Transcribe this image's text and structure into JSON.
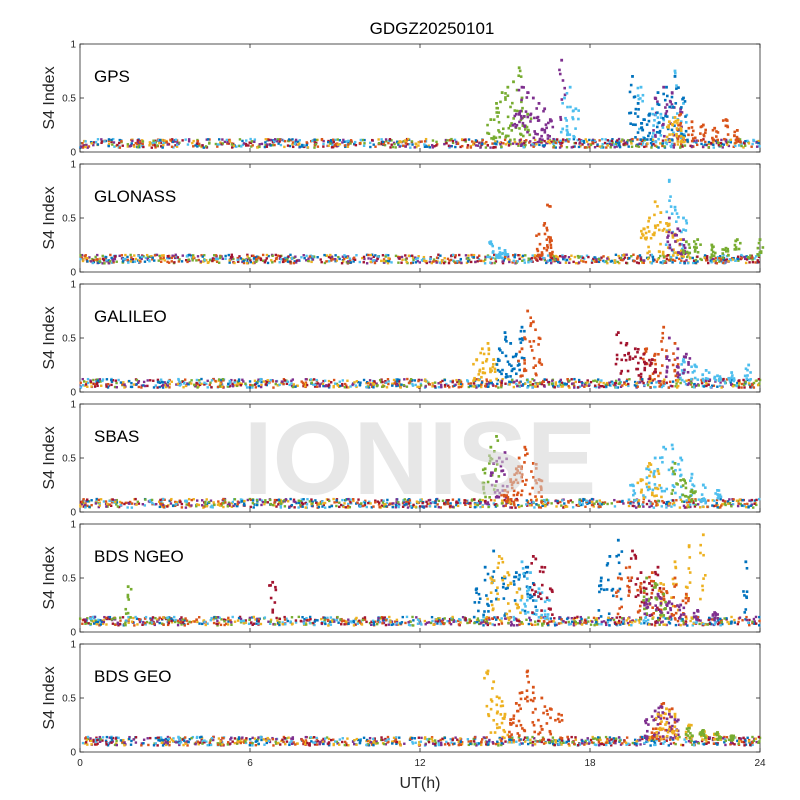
{
  "chart_data": {
    "type": "scatter",
    "title": "GDGZ20250101",
    "xlabel": "UT(h)",
    "ylabel": "S4 Index",
    "xlim": [
      0,
      24
    ],
    "ylim": [
      0,
      1
    ],
    "xticks": [
      "0",
      "6",
      "12",
      "18",
      "24"
    ],
    "yticks": [
      "0",
      "0.5",
      "1"
    ],
    "watermark": "IONISE",
    "colors": [
      "#0072BD",
      "#D95319",
      "#EDB120",
      "#7E2F8E",
      "#77AC30",
      "#4DBEEE",
      "#A2142F"
    ],
    "panels": [
      {
        "name": "GPS",
        "baseline": 0.08,
        "series": [
          {
            "color": "#77AC30",
            "x": [
              14.5,
              14.7,
              14.9,
              15.1,
              15.3,
              15.5,
              15.6,
              15.8
            ],
            "y": [
              0.3,
              0.45,
              0.55,
              0.6,
              0.65,
              0.78,
              0.5,
              0.35
            ]
          },
          {
            "color": "#7E2F8E",
            "x": [
              15.4,
              15.6,
              15.8,
              16.0,
              16.2,
              16.4,
              16.6,
              17.0,
              20.3,
              20.6,
              20.9,
              21.2
            ],
            "y": [
              0.35,
              0.6,
              0.55,
              0.5,
              0.45,
              0.4,
              0.3,
              0.85,
              0.5,
              0.6,
              0.55,
              0.4
            ]
          },
          {
            "color": "#4DBEEE",
            "x": [
              17.1,
              17.3,
              17.5,
              19.8,
              20.2,
              20.5,
              21.0,
              21.3
            ],
            "y": [
              0.5,
              0.6,
              0.4,
              0.6,
              0.4,
              0.35,
              0.75,
              0.45
            ]
          },
          {
            "color": "#0072BD",
            "x": [
              19.5,
              19.7,
              19.9,
              20.1,
              20.4,
              20.7,
              21.0,
              21.3
            ],
            "y": [
              0.7,
              0.45,
              0.3,
              0.35,
              0.55,
              0.6,
              0.7,
              0.5
            ]
          },
          {
            "color": "#D95319",
            "x": [
              21.2,
              21.6,
              22.0,
              22.4,
              22.8,
              23.2
            ],
            "y": [
              0.35,
              0.28,
              0.25,
              0.22,
              0.3,
              0.2
            ]
          },
          {
            "color": "#EDB120",
            "x": [
              20.8,
              21.0,
              21.2
            ],
            "y": [
              0.28,
              0.32,
              0.22
            ]
          }
        ]
      },
      {
        "name": "GLONASS",
        "baseline": 0.12,
        "series": [
          {
            "color": "#D95319",
            "x": [
              16.2,
              16.4,
              16.5,
              16.6
            ],
            "y": [
              0.35,
              0.45,
              0.62,
              0.3
            ]
          },
          {
            "color": "#4DBEEE",
            "x": [
              14.5,
              14.8,
              15.0,
              20.8,
              21.0,
              21.3
            ],
            "y": [
              0.28,
              0.22,
              0.2,
              0.85,
              0.6,
              0.5
            ]
          },
          {
            "color": "#EDB120",
            "x": [
              19.9,
              20.1,
              20.3,
              20.5,
              20.7,
              21.0,
              21.2
            ],
            "y": [
              0.4,
              0.5,
              0.65,
              0.55,
              0.45,
              0.35,
              0.3
            ]
          },
          {
            "color": "#7E2F8E",
            "x": [
              20.8,
              21.1,
              21.3
            ],
            "y": [
              0.5,
              0.4,
              0.3
            ]
          },
          {
            "color": "#77AC30",
            "x": [
              21.4,
              21.8,
              22.3,
              22.8,
              23.2,
              24.0
            ],
            "y": [
              0.28,
              0.3,
              0.25,
              0.22,
              0.3,
              0.3
            ]
          }
        ]
      },
      {
        "name": "GALILEO",
        "baseline": 0.08,
        "series": [
          {
            "color": "#EDB120",
            "x": [
              14.0,
              14.2,
              14.4,
              14.6
            ],
            "y": [
              0.3,
              0.4,
              0.45,
              0.3
            ]
          },
          {
            "color": "#0072BD",
            "x": [
              14.8,
              15.0,
              15.2,
              15.4,
              15.6
            ],
            "y": [
              0.4,
              0.55,
              0.45,
              0.35,
              0.6
            ]
          },
          {
            "color": "#D95319",
            "x": [
              15.6,
              15.8,
              16.0,
              16.2,
              20.0,
              20.3,
              20.6,
              21.0
            ],
            "y": [
              0.4,
              0.75,
              0.65,
              0.5,
              0.4,
              0.35,
              0.6,
              0.45
            ]
          },
          {
            "color": "#A2142F",
            "x": [
              19.0,
              19.3,
              19.6,
              19.9,
              20.2
            ],
            "y": [
              0.55,
              0.45,
              0.4,
              0.35,
              0.3
            ]
          },
          {
            "color": "#4DBEEE",
            "x": [
              21.3,
              21.7,
              22.1,
              22.5,
              23.0,
              23.6
            ],
            "y": [
              0.3,
              0.25,
              0.2,
              0.15,
              0.18,
              0.25
            ]
          },
          {
            "color": "#7E2F8E",
            "x": [
              20.8,
              21.1,
              21.4
            ],
            "y": [
              0.5,
              0.4,
              0.35
            ]
          }
        ]
      },
      {
        "name": "SBAS",
        "baseline": 0.08,
        "series": [
          {
            "color": "#77AC30",
            "x": [
              14.3,
              14.5,
              14.7
            ],
            "y": [
              0.4,
              0.6,
              0.7
            ]
          },
          {
            "color": "#7E2F8E",
            "x": [
              14.6,
              14.8,
              15.0
            ],
            "y": [
              0.45,
              0.5,
              0.55
            ]
          },
          {
            "color": "#D95319",
            "x": [
              15.0,
              15.2,
              15.4,
              15.5,
              15.7,
              16.0,
              16.2
            ],
            "y": [
              0.2,
              0.3,
              0.4,
              0.5,
              0.6,
              0.45,
              0.3
            ]
          },
          {
            "color": "#4DBEEE",
            "x": [
              19.5,
              20.0,
              20.3,
              20.6,
              20.9,
              21.2,
              21.6,
              22.0,
              22.5
            ],
            "y": [
              0.25,
              0.4,
              0.5,
              0.6,
              0.62,
              0.5,
              0.35,
              0.25,
              0.2
            ]
          },
          {
            "color": "#EDB120",
            "x": [
              19.8,
              20.1,
              20.4
            ],
            "y": [
              0.3,
              0.45,
              0.38
            ]
          },
          {
            "color": "#77AC30",
            "x": [
              21.0,
              21.3,
              21.6
            ],
            "y": [
              0.45,
              0.3,
              0.2
            ]
          }
        ]
      },
      {
        "name": "BDS NGEO",
        "baseline": 0.1,
        "series": [
          {
            "color": "#0072BD",
            "x": [
              14.0,
              14.3,
              14.6,
              15.0,
              15.4,
              15.8,
              16.0,
              18.4,
              18.7,
              19.0
            ],
            "y": [
              0.4,
              0.6,
              0.75,
              0.5,
              0.55,
              0.6,
              0.45,
              0.5,
              0.7,
              0.85
            ]
          },
          {
            "color": "#EDB120",
            "x": [
              14.5,
              14.8,
              15.1,
              15.5,
              20.5,
              21.0,
              21.5,
              22.0
            ],
            "y": [
              0.5,
              0.7,
              0.55,
              0.4,
              0.45,
              0.65,
              0.8,
              0.9
            ]
          },
          {
            "color": "#4DBEEE",
            "x": [
              15.6,
              15.9,
              16.2,
              16.5
            ],
            "y": [
              0.65,
              0.55,
              0.4,
              0.3
            ]
          },
          {
            "color": "#A2142F",
            "x": [
              16.0,
              16.3,
              16.6,
              19.5,
              19.8,
              20.1,
              20.4
            ],
            "y": [
              0.7,
              0.6,
              0.4,
              0.75,
              0.55,
              0.45,
              0.6
            ]
          },
          {
            "color": "#D95319",
            "x": [
              19.0,
              19.4,
              19.8,
              20.2,
              20.6,
              21.0,
              21.4
            ],
            "y": [
              0.5,
              0.6,
              0.45,
              0.55,
              0.4,
              0.5,
              0.35
            ]
          },
          {
            "color": "#77AC30",
            "x": [
              1.7,
              20.0,
              20.3,
              20.6
            ],
            "y": [
              0.42,
              0.5,
              0.45,
              0.35
            ]
          },
          {
            "color": "#7E2F8E",
            "x": [
              20.0,
              20.4,
              20.8,
              21.2,
              21.8,
              22.4
            ],
            "y": [
              0.3,
              0.35,
              0.28,
              0.25,
              0.2,
              0.18
            ]
          },
          {
            "color": "#A2142F",
            "x": [
              6.8
            ],
            "y": [
              0.46
            ]
          },
          {
            "color": "#0072BD",
            "x": [
              23.5
            ],
            "y": [
              0.65
            ]
          }
        ]
      },
      {
        "name": "BDS GEO",
        "baseline": 0.1,
        "series": [
          {
            "color": "#EDB120",
            "x": [
              14.4,
              14.6,
              14.8,
              15.0
            ],
            "y": [
              0.75,
              0.65,
              0.5,
              0.35
            ]
          },
          {
            "color": "#D95319",
            "x": [
              15.2,
              15.4,
              15.6,
              15.8,
              16.0,
              16.3,
              16.6,
              16.9,
              20.3,
              20.6,
              20.9
            ],
            "y": [
              0.3,
              0.45,
              0.55,
              0.75,
              0.6,
              0.5,
              0.4,
              0.35,
              0.3,
              0.45,
              0.4
            ]
          },
          {
            "color": "#7E2F8E",
            "x": [
              20.0,
              20.3,
              20.5,
              20.8,
              21.0
            ],
            "y": [
              0.3,
              0.38,
              0.42,
              0.35,
              0.3
            ]
          },
          {
            "color": "#EDB120",
            "x": [
              20.4,
              20.7,
              21.0,
              21.5,
              22.0,
              22.5
            ],
            "y": [
              0.35,
              0.4,
              0.35,
              0.25,
              0.2,
              0.18
            ]
          },
          {
            "color": "#77AC30",
            "x": [
              21.5,
              22.0,
              22.5,
              23.0
            ],
            "y": [
              0.22,
              0.2,
              0.18,
              0.15
            ]
          }
        ]
      }
    ]
  }
}
